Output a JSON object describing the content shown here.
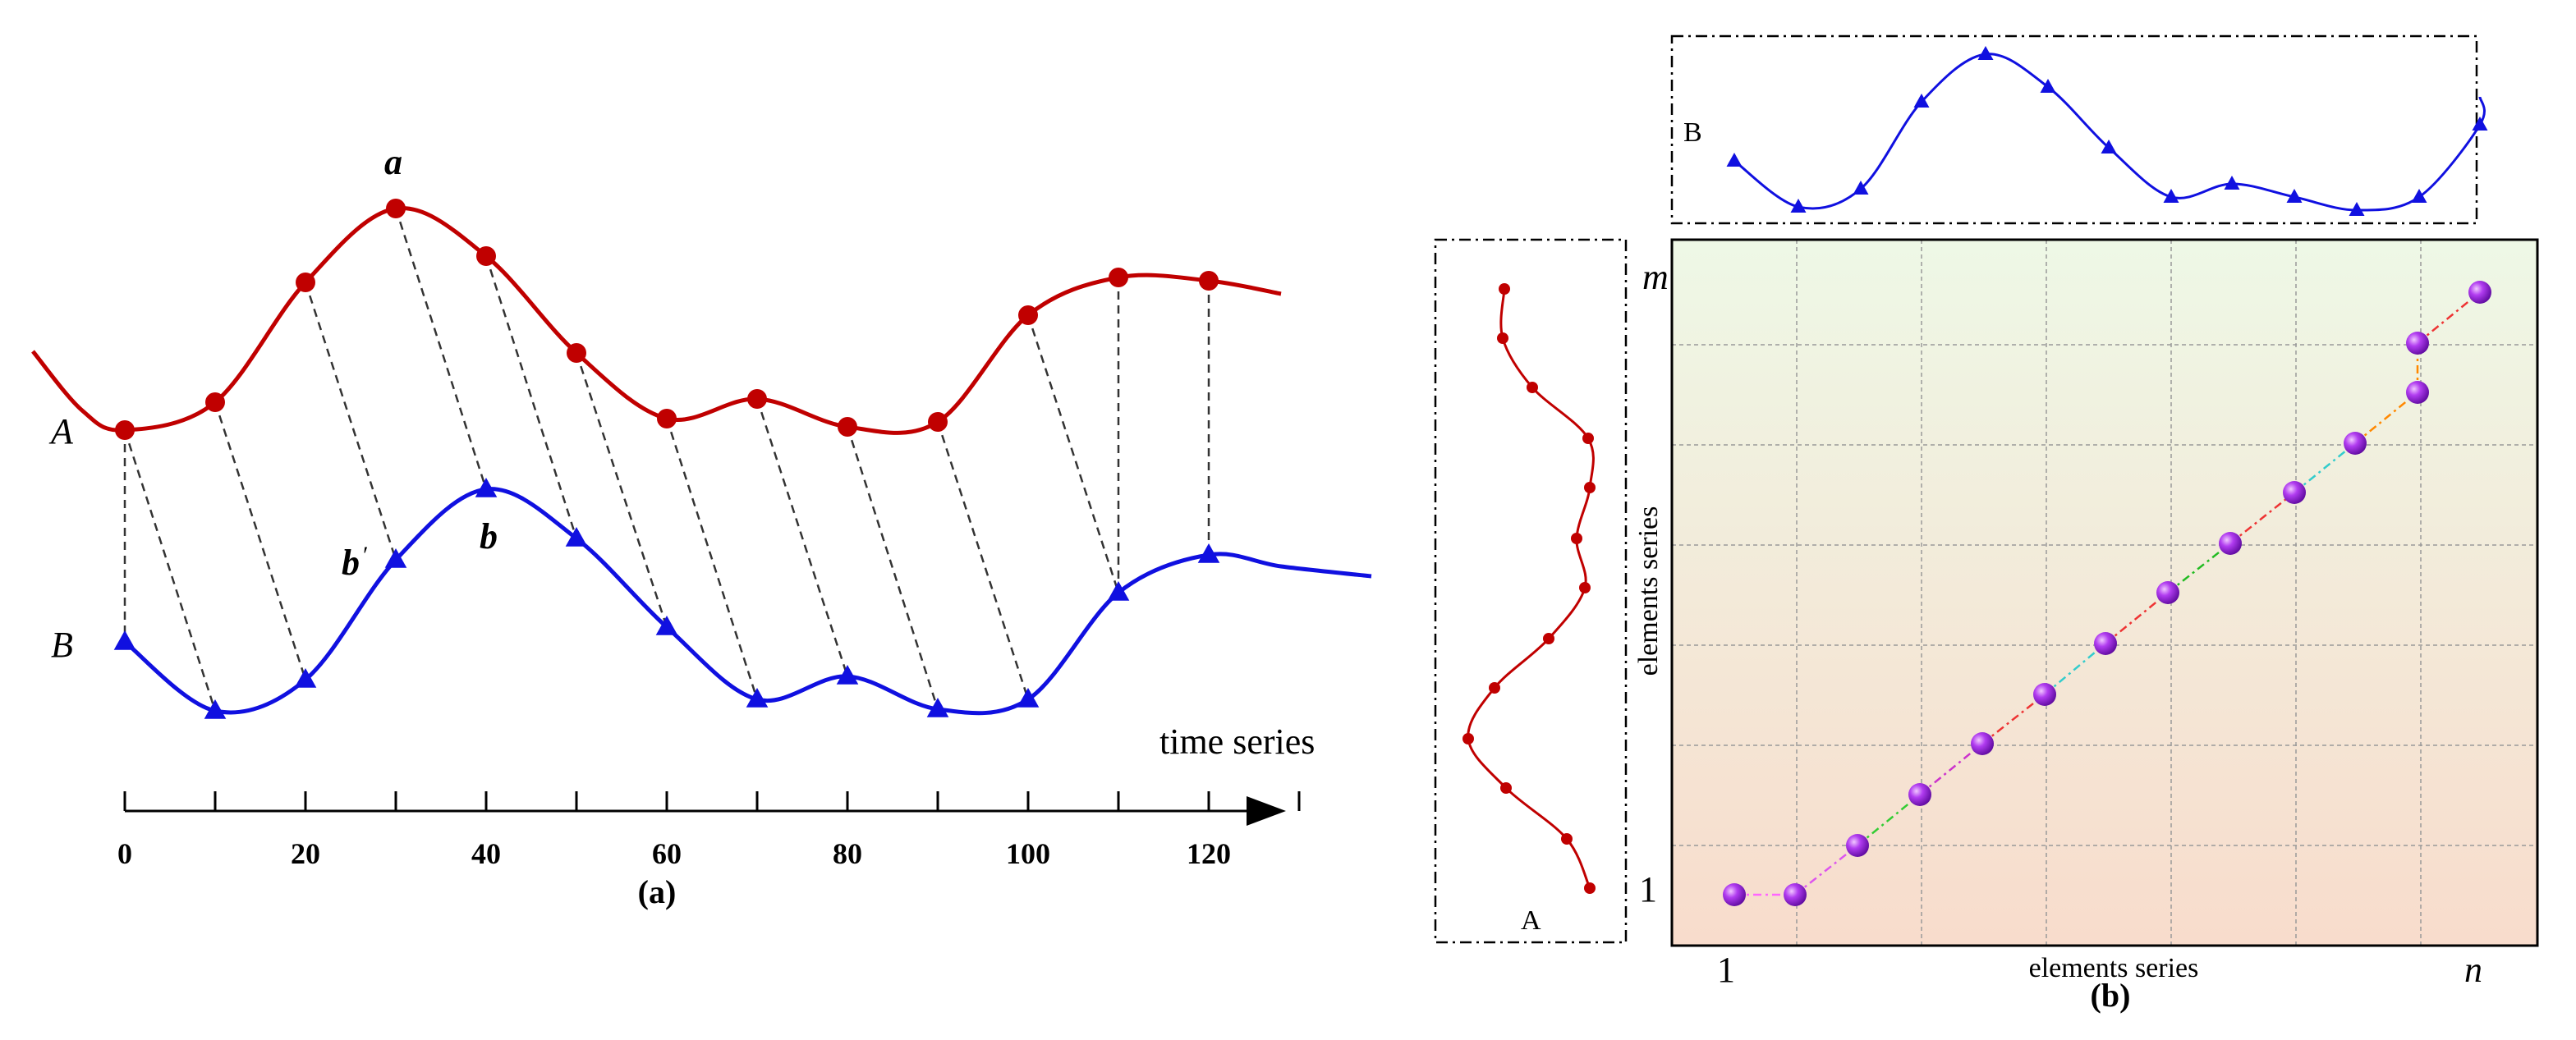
{
  "panel_a": {
    "caption": "(a)",
    "series_a_label": "A",
    "series_b_label": "B",
    "point_a_label": "a",
    "point_b_label": "b",
    "point_b_prime_label": "b",
    "axis_label": "time series",
    "ticks": [
      "0",
      "20",
      "40",
      "60",
      "80",
      "100",
      "120"
    ],
    "colors": {
      "series_a": "#c00000",
      "series_b": "#1010e0",
      "alignment": "#333333"
    }
  },
  "panel_b": {
    "caption": "(b)",
    "top_series_label": "B",
    "left_series_label": "A",
    "xlabel": "elements series",
    "ylabel": "elements series",
    "x_start": "1",
    "x_end": "n",
    "y_start": "1",
    "y_end": "m",
    "colors": {
      "path_point": "#8a1fd0",
      "grid": "#999999",
      "bg_top": "#eef8e6",
      "bg_bottom": "#f8dccc"
    }
  }
}
